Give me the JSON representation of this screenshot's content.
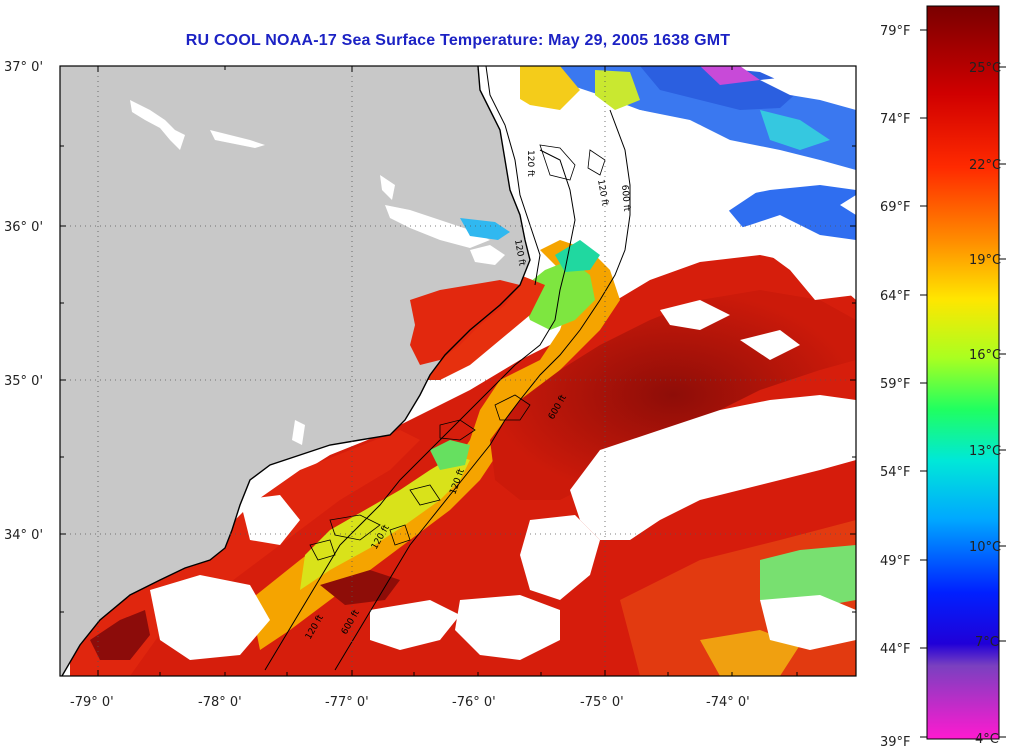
{
  "title": "RU COOL  NOAA-17  Sea Surface Temperature:  May 29, 2005 1638 GMT",
  "lat_labels": [
    "37° 0'",
    "36° 0'",
    "35° 0'",
    "34° 0'"
  ],
  "lon_labels": [
    "-79° 0'",
    "-78° 0'",
    "-77° 0'",
    "-76° 0'",
    "-75° 0'",
    "-74° 0'"
  ],
  "colorbar": {
    "fahrenheit": [
      "79°F",
      "74°F",
      "69°F",
      "64°F",
      "59°F",
      "54°F",
      "49°F",
      "44°F",
      "39°F"
    ],
    "celsius": [
      "25°C",
      "22°C",
      "19°C",
      "16°C",
      "13°C",
      "10°C",
      "7°C",
      "4°C"
    ]
  },
  "isobaths": [
    "120 ft",
    "600 ft"
  ],
  "colors": {
    "title": "#1c22c4",
    "land": "#c8c8c8",
    "warm": "#d41a0a",
    "hot": "#9e0f0a",
    "mid": "#f6a300",
    "cool": "#2060e8",
    "cloud": "#ffffff"
  }
}
